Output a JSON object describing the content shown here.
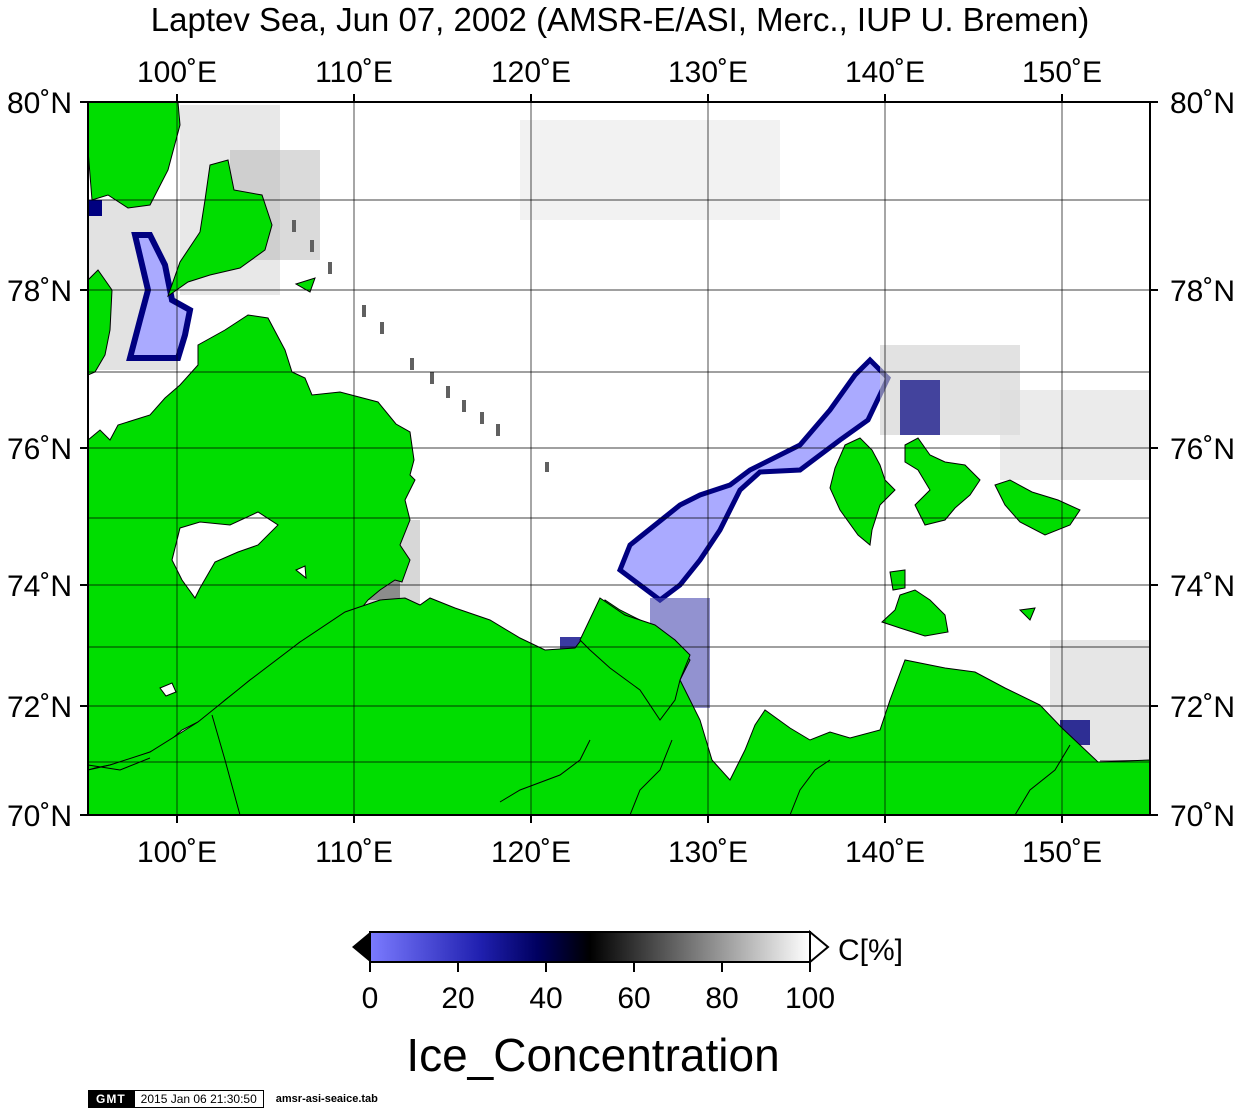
{
  "title": "Laptev Sea, Jun 07, 2002 (AMSR-E/ASI, Merc., IUP U. Bremen)",
  "map": {
    "lon_range": [
      95,
      155
    ],
    "lat_range": [
      70,
      80
    ],
    "lon_ticks": [
      "100˚E",
      "110˚E",
      "120˚E",
      "130˚E",
      "140˚E",
      "150˚E"
    ],
    "lat_ticks": [
      "80˚N",
      "78˚N",
      "76˚N",
      "74˚N",
      "72˚N",
      "70˚N"
    ],
    "land_color": "#00dd00",
    "ocean_color": "#ffffff"
  },
  "colorbar": {
    "ticks": [
      "0",
      "20",
      "40",
      "60",
      "80",
      "100"
    ],
    "unit": "C[%]",
    "colors": [
      "#7b7bff",
      "#000080",
      "#000000",
      "#ffffff"
    ]
  },
  "variable": "Ice_Concentration",
  "footer": {
    "logo": "GMT",
    "timestamp": "2015 Jan 06 21:30:50",
    "command": "amsr-asi-seaice.tab"
  }
}
